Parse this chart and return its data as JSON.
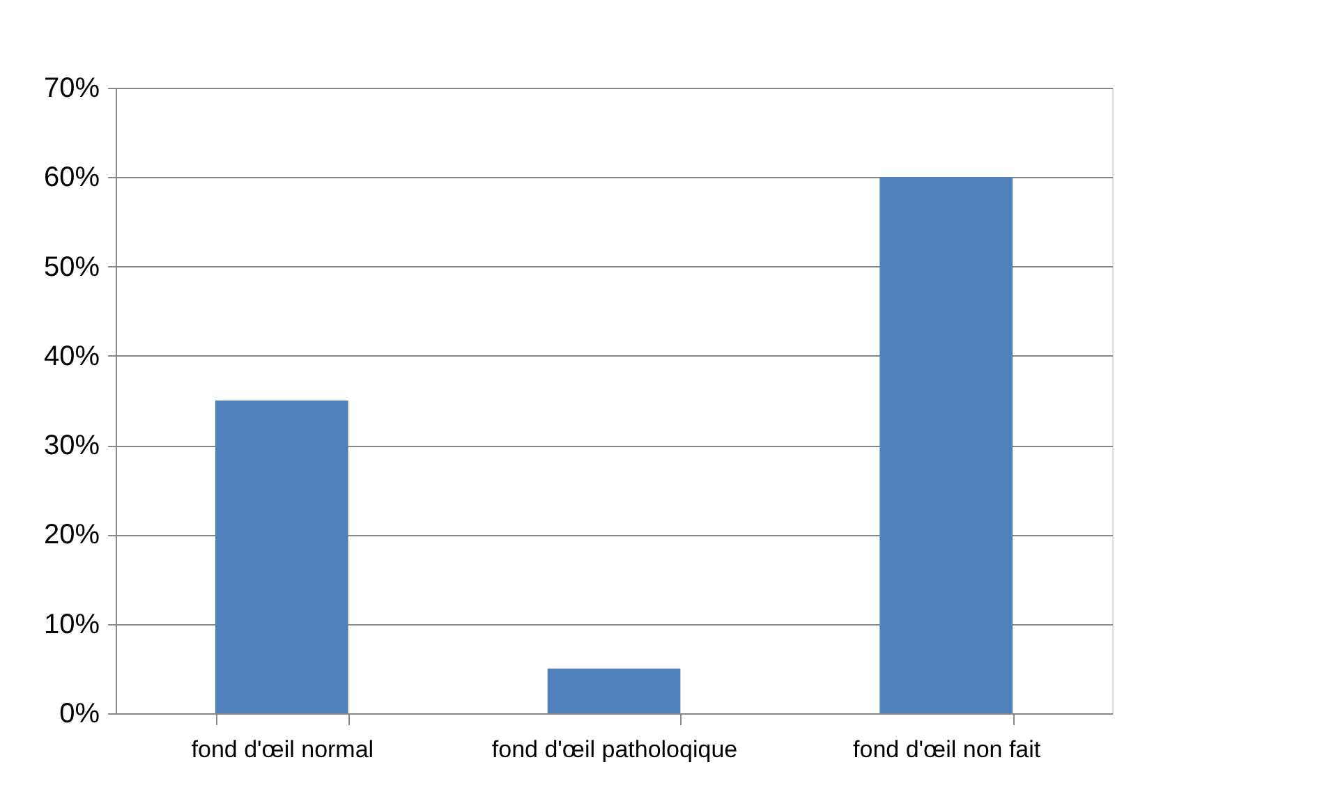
{
  "chart_data": {
    "type": "bar",
    "categories": [
      "fond d'œil normal",
      "fond d'œil patholoqique",
      "fond d'œil non fait"
    ],
    "values": [
      35,
      5,
      60
    ],
    "color": "#4f81bd",
    "ylim": [
      0,
      70
    ],
    "yticks": [
      {
        "value": 0,
        "label": "0%"
      },
      {
        "value": 10,
        "label": "10%"
      },
      {
        "value": 20,
        "label": "20%"
      },
      {
        "value": 30,
        "label": "30%"
      },
      {
        "value": 40,
        "label": "40%"
      },
      {
        "value": 50,
        "label": "50%"
      },
      {
        "value": 60,
        "label": "60%"
      },
      {
        "value": 70,
        "label": "70%"
      }
    ],
    "grid": "y",
    "legend": false
  }
}
